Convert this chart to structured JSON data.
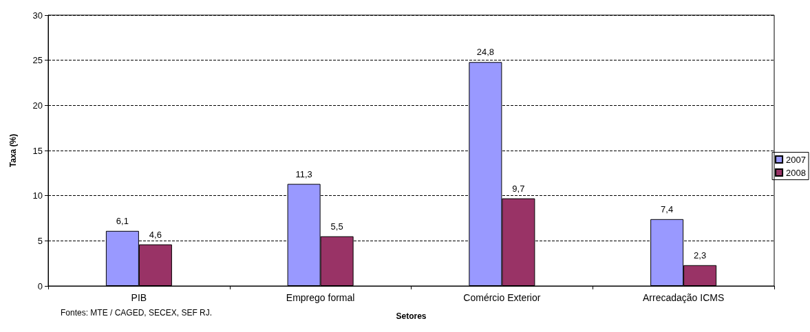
{
  "chart_data": {
    "type": "bar",
    "xlabel": "Setores",
    "ylabel": "Taxa (%)",
    "categories": [
      "PIB",
      "Emprego formal",
      "Comércio Exterior",
      "Arrecadação ICMS"
    ],
    "series": [
      {
        "name": "2007",
        "color": "#9999ff",
        "values": [
          6.1,
          11.3,
          24.8,
          7.4
        ],
        "value_labels": [
          "6,1",
          "11,3",
          "24,8",
          "7,4"
        ]
      },
      {
        "name": "2008",
        "color": "#993366",
        "values": [
          4.6,
          5.5,
          9.7,
          2.3
        ],
        "value_labels": [
          "4,6",
          "5,5",
          "9,7",
          "2,3"
        ]
      }
    ],
    "ylim": [
      0,
      30
    ],
    "yticks": [
      0,
      5,
      10,
      15,
      20,
      25,
      30
    ],
    "grid": "y",
    "legend": "right",
    "annotations": [
      "Fontes: MTE / CAGED, SECEX, SEF RJ."
    ]
  }
}
